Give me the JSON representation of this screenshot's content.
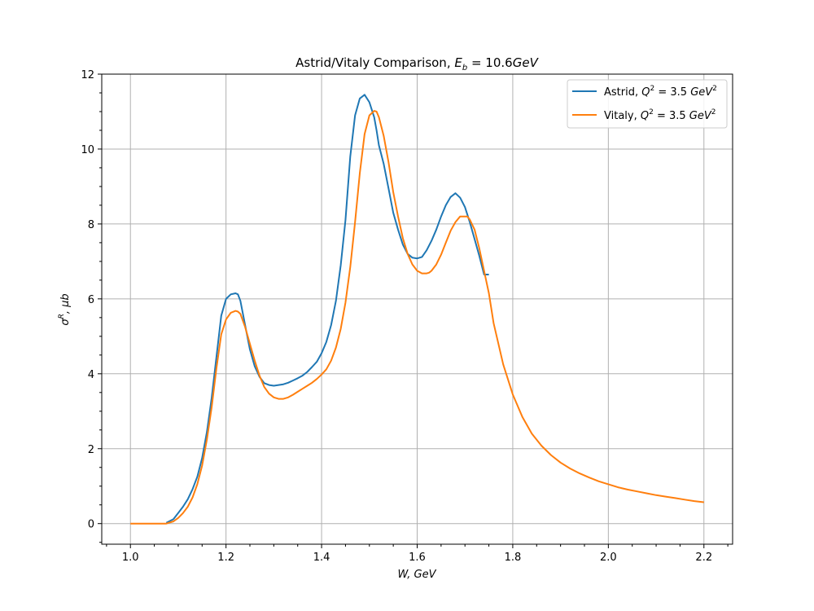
{
  "chart_data": {
    "type": "line",
    "title": "Astrid/Vitaly Comparison, ",
    "title_math": {
      "symbol": "E",
      "sub": "b",
      "rest": " = 10.6",
      "unit": "GeV"
    },
    "xlabel": "W, GeV",
    "ylabel_parts": {
      "sigma": "σ",
      "sup": "R",
      "rest": ", μb"
    },
    "xlim": [
      0.94,
      2.26
    ],
    "ylim": [
      -0.55,
      12
    ],
    "xticks": [
      1.0,
      1.2,
      1.4,
      1.6,
      1.8,
      2.0,
      2.2
    ],
    "xtick_labels": [
      "1.0",
      "1.2",
      "1.4",
      "1.6",
      "1.8",
      "2.0",
      "2.2"
    ],
    "yticks": [
      0,
      2,
      4,
      6,
      8,
      10,
      12
    ],
    "ytick_labels": [
      "0",
      "2",
      "4",
      "6",
      "8",
      "10",
      "12"
    ],
    "grid": true,
    "legend_position": "top-right",
    "series": [
      {
        "name": "Astrid, Q² = 3.5 GeV²",
        "legend_prefix": "Astrid, ",
        "color": "#1f77b4",
        "x": [
          1.075,
          1.09,
          1.1,
          1.11,
          1.12,
          1.13,
          1.14,
          1.15,
          1.16,
          1.17,
          1.18,
          1.19,
          1.2,
          1.21,
          1.22,
          1.225,
          1.23,
          1.24,
          1.25,
          1.26,
          1.27,
          1.28,
          1.29,
          1.3,
          1.31,
          1.32,
          1.33,
          1.34,
          1.35,
          1.36,
          1.37,
          1.38,
          1.39,
          1.4,
          1.41,
          1.42,
          1.43,
          1.44,
          1.45,
          1.46,
          1.47,
          1.48,
          1.49,
          1.5,
          1.51,
          1.515,
          1.52,
          1.53,
          1.54,
          1.55,
          1.56,
          1.57,
          1.58,
          1.59,
          1.6,
          1.61,
          1.62,
          1.63,
          1.64,
          1.65,
          1.66,
          1.67,
          1.68,
          1.69,
          1.7,
          1.71,
          1.72,
          1.73,
          1.74,
          1.75
        ],
        "y": [
          0.02,
          0.12,
          0.28,
          0.45,
          0.65,
          0.92,
          1.25,
          1.75,
          2.45,
          3.35,
          4.45,
          5.55,
          6.0,
          6.12,
          6.15,
          6.12,
          5.95,
          5.3,
          4.65,
          4.2,
          3.92,
          3.75,
          3.7,
          3.68,
          3.7,
          3.72,
          3.76,
          3.82,
          3.88,
          3.95,
          4.05,
          4.18,
          4.32,
          4.55,
          4.85,
          5.3,
          5.95,
          6.9,
          8.1,
          9.8,
          10.9,
          11.35,
          11.45,
          11.25,
          10.85,
          10.5,
          10.1,
          9.6,
          8.95,
          8.3,
          7.85,
          7.45,
          7.2,
          7.1,
          7.08,
          7.12,
          7.3,
          7.55,
          7.85,
          8.2,
          8.5,
          8.72,
          8.82,
          8.7,
          8.45,
          8.05,
          7.6,
          7.15,
          6.65,
          6.65
        ],
        "x_plot_note": "",
        "values_src": "astrid"
      },
      {
        "name": "Vitaly, Q² = 3.5 GeV²",
        "legend_prefix": "Vitaly, ",
        "color": "#ff7f0e",
        "x": [
          1.0,
          1.02,
          1.04,
          1.06,
          1.075,
          1.09,
          1.1,
          1.11,
          1.12,
          1.13,
          1.14,
          1.15,
          1.16,
          1.17,
          1.18,
          1.19,
          1.2,
          1.21,
          1.22,
          1.225,
          1.23,
          1.24,
          1.25,
          1.26,
          1.27,
          1.28,
          1.29,
          1.3,
          1.31,
          1.32,
          1.33,
          1.34,
          1.35,
          1.36,
          1.37,
          1.38,
          1.39,
          1.4,
          1.41,
          1.42,
          1.43,
          1.44,
          1.45,
          1.46,
          1.47,
          1.48,
          1.49,
          1.5,
          1.51,
          1.515,
          1.52,
          1.53,
          1.54,
          1.55,
          1.56,
          1.57,
          1.58,
          1.59,
          1.6,
          1.61,
          1.62,
          1.625,
          1.63,
          1.64,
          1.65,
          1.66,
          1.67,
          1.68,
          1.69,
          1.7,
          1.705,
          1.71,
          1.72,
          1.73,
          1.74,
          1.75,
          1.76,
          1.78,
          1.8,
          1.82,
          1.84,
          1.86,
          1.88,
          1.9,
          1.92,
          1.94,
          1.96,
          1.98,
          2.0,
          2.02,
          2.04,
          2.06,
          2.08,
          2.1,
          2.12,
          2.14,
          2.16,
          2.18,
          2.2
        ],
        "y": [
          0.0,
          0.0,
          0.0,
          0.0,
          0.0,
          0.06,
          0.15,
          0.28,
          0.45,
          0.7,
          1.05,
          1.55,
          2.25,
          3.1,
          4.15,
          5.05,
          5.45,
          5.63,
          5.68,
          5.66,
          5.6,
          5.25,
          4.8,
          4.35,
          3.95,
          3.65,
          3.47,
          3.37,
          3.33,
          3.33,
          3.37,
          3.44,
          3.52,
          3.6,
          3.68,
          3.76,
          3.86,
          3.98,
          4.12,
          4.35,
          4.7,
          5.2,
          5.9,
          6.85,
          8.05,
          9.35,
          10.4,
          10.9,
          11.02,
          11.0,
          10.85,
          10.35,
          9.65,
          8.85,
          8.2,
          7.62,
          7.2,
          6.92,
          6.75,
          6.68,
          6.68,
          6.7,
          6.75,
          6.92,
          7.18,
          7.5,
          7.82,
          8.05,
          8.2,
          8.2,
          8.2,
          8.12,
          7.85,
          7.35,
          6.75,
          6.15,
          5.35,
          4.25,
          3.45,
          2.85,
          2.4,
          2.08,
          1.83,
          1.63,
          1.47,
          1.34,
          1.23,
          1.13,
          1.05,
          0.97,
          0.91,
          0.86,
          0.81,
          0.76,
          0.72,
          0.68,
          0.64,
          0.6,
          0.57
        ],
        "values_src": "vitaly"
      }
    ]
  }
}
